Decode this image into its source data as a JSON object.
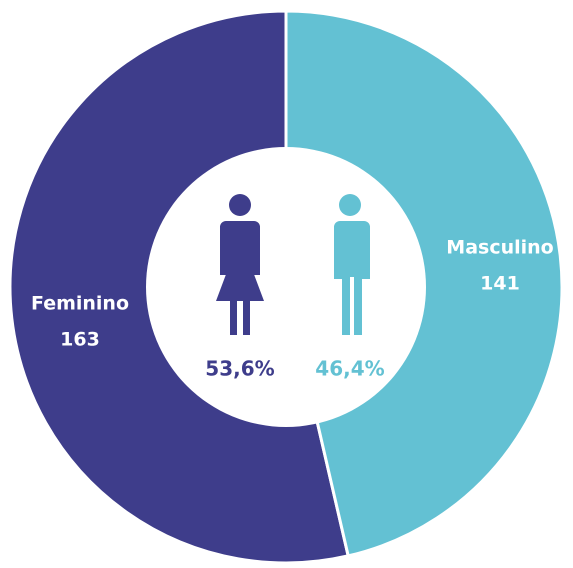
{
  "chart_data": {
    "type": "donut",
    "categories": [
      "Feminino",
      "Masculino"
    ],
    "values": [
      163,
      141
    ],
    "colors": [
      "#3e3d8b",
      "#63c1d3"
    ],
    "percentages": [
      53.6,
      46.4
    ],
    "percentage_labels": [
      "53,6%",
      "46,4%"
    ]
  }
}
